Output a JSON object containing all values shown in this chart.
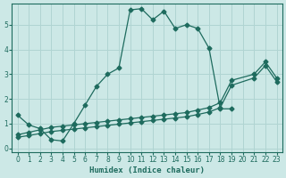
{
  "xlabel": "Humidex (Indice chaleur)",
  "bg_color": "#cce8e6",
  "line_color": "#1e6b5e",
  "grid_color": "#b0d4d2",
  "xlim": [
    -0.5,
    23.5
  ],
  "ylim": [
    -0.15,
    5.85
  ],
  "yticks": [
    0,
    1,
    2,
    3,
    4,
    5
  ],
  "xticks": [
    0,
    1,
    2,
    3,
    4,
    5,
    6,
    7,
    8,
    9,
    10,
    11,
    12,
    13,
    14,
    15,
    16,
    17,
    18,
    19,
    20,
    21,
    22,
    23
  ],
  "curve1_x": [
    0,
    1,
    2,
    3,
    4,
    5,
    6,
    7,
    8,
    9,
    10,
    11,
    12,
    13,
    14,
    15,
    16,
    17,
    18,
    19
  ],
  "curve1_y": [
    1.35,
    0.95,
    0.8,
    0.35,
    0.3,
    1.0,
    1.75,
    2.5,
    3.0,
    3.25,
    5.6,
    5.65,
    5.2,
    5.55,
    4.85,
    5.0,
    4.85,
    4.05,
    1.6,
    1.6
  ],
  "line_upper_x": [
    0,
    1,
    2,
    3,
    4,
    5,
    6,
    7,
    8,
    9,
    10,
    11,
    12,
    13,
    14,
    15,
    16,
    17,
    18,
    19,
    21,
    22,
    23
  ],
  "line_upper_y": [
    0.55,
    0.65,
    0.75,
    0.85,
    0.9,
    0.95,
    1.0,
    1.05,
    1.1,
    1.15,
    1.2,
    1.25,
    1.3,
    1.35,
    1.4,
    1.45,
    1.55,
    1.65,
    1.85,
    2.75,
    3.0,
    3.5,
    2.85
  ],
  "line_lower_x": [
    0,
    1,
    2,
    3,
    4,
    5,
    6,
    7,
    8,
    9,
    10,
    11,
    12,
    13,
    14,
    15,
    16,
    17,
    18,
    19,
    21,
    22,
    23
  ],
  "line_lower_y": [
    0.45,
    0.52,
    0.6,
    0.68,
    0.73,
    0.78,
    0.83,
    0.88,
    0.93,
    0.98,
    1.03,
    1.08,
    1.13,
    1.18,
    1.23,
    1.28,
    1.37,
    1.47,
    1.65,
    2.55,
    2.85,
    3.35,
    2.7
  ]
}
